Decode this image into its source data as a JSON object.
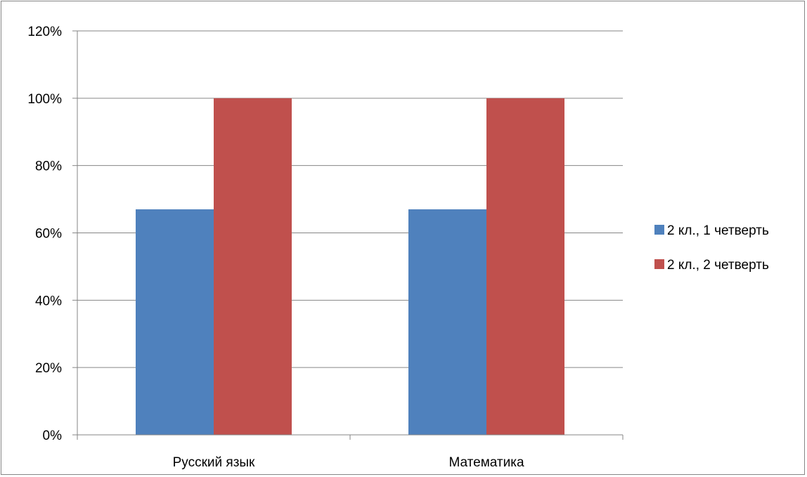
{
  "chart_data": {
    "type": "bar",
    "categories": [
      "Русский язык",
      "Математика"
    ],
    "series": [
      {
        "name": "2 кл., 1 четверть",
        "color": "#4F81BD",
        "values": [
          0.67,
          0.67
        ]
      },
      {
        "name": "2 кл., 2 четверть",
        "color": "#C0504D",
        "values": [
          1.0,
          1.0
        ]
      }
    ],
    "ylim": [
      0,
      1.2
    ],
    "yticks": [
      0,
      0.2,
      0.4,
      0.6,
      0.8,
      1.0,
      1.2
    ],
    "ytick_labels": [
      "0%",
      "20%",
      "40%",
      "60%",
      "80%",
      "100%",
      "120%"
    ],
    "grid": true,
    "legend_position": "right"
  }
}
